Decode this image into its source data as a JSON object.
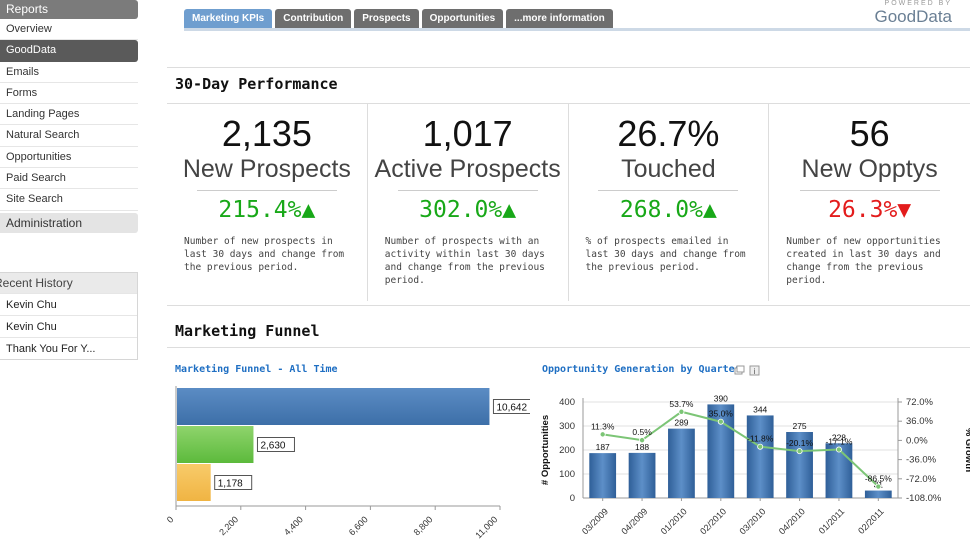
{
  "sidebar": {
    "header": "Reports",
    "items": [
      {
        "label": "Overview"
      },
      {
        "label": "GoodData"
      },
      {
        "label": "Emails"
      },
      {
        "label": "Forms"
      },
      {
        "label": "Landing Pages"
      },
      {
        "label": "Natural Search"
      },
      {
        "label": "Opportunities"
      },
      {
        "label": "Paid Search"
      },
      {
        "label": "Site Search"
      }
    ],
    "admin": "Administration",
    "recent": {
      "header": "Recent History",
      "items": [
        {
          "label": "Kevin Chu"
        },
        {
          "label": "Kevin Chu"
        },
        {
          "label": "Thank You For Y..."
        }
      ]
    }
  },
  "tabs": [
    {
      "label": "Marketing KPIs"
    },
    {
      "label": "Contribution"
    },
    {
      "label": "Prospects"
    },
    {
      "label": "Opportunities"
    },
    {
      "label": "...more information"
    }
  ],
  "logo": {
    "powered": "POWERED BY",
    "brand": "GoodData"
  },
  "performance": {
    "title": "30-Day Performance",
    "kpis": [
      {
        "value": "2,135",
        "label": "New Prospects",
        "change": "215.4%▲",
        "direction": "up",
        "desc": "Number of new prospects in last 30 days and change from the previous period."
      },
      {
        "value": "1,017",
        "label": "Active Prospects",
        "change": "302.0%▲",
        "direction": "up",
        "desc": "Number of prospects with an activity within last 30 days and change from the previous period."
      },
      {
        "value": "26.7%",
        "label": "Touched",
        "change": "268.0%▲",
        "direction": "up",
        "desc": "% of prospects emailed in last 30 days and change from the previous period."
      },
      {
        "value": "56",
        "label": "New Opptys",
        "change": "26.3%▼",
        "direction": "down",
        "desc": "Number of new opportunities created in last 30 days and change from the previous period."
      }
    ]
  },
  "funnel": {
    "title": "Marketing Funnel"
  },
  "colors": {
    "accent": "#1f6fc3",
    "up": "#18a818",
    "down": "#e31c1c",
    "bar_blue": "#3d6fa8",
    "bar_green": "#5cba3c",
    "bar_orange": "#f0b443",
    "line_green": "#7cc576"
  },
  "chart_data": [
    {
      "type": "bar",
      "orientation": "horizontal",
      "title": "Marketing Funnel - All Time",
      "values": [
        10642,
        2630,
        1178
      ],
      "value_labels": [
        "10,642",
        "2,630",
        "1,178"
      ],
      "xlim": [
        0,
        11000
      ],
      "xticks": [
        "0",
        "2,200",
        "4,400",
        "6,600",
        "8,800",
        "11,000"
      ],
      "xtick_values": [
        0,
        2200,
        4400,
        6600,
        8800,
        11000
      ]
    },
    {
      "type": "bar",
      "title": "Opportunity Generation by Quarter",
      "categories": [
        "Q3/2009",
        "Q4/2009",
        "Q1/2010",
        "Q2/2010",
        "Q3/2010",
        "Q4/2010",
        "Q1/2011",
        "Q2/2011"
      ],
      "category_labels": [
        "03/2009",
        "04/2009",
        "01/2010",
        "02/2010",
        "03/2010",
        "04/2010",
        "01/2011",
        "02/2011"
      ],
      "values": [
        187,
        188,
        289,
        390,
        344,
        275,
        228,
        31
      ],
      "value_labels": [
        "187",
        "188",
        "289",
        "390",
        "344",
        "275",
        "228",
        "31"
      ],
      "ylabel": "# Opportunities",
      "ylim": [
        0,
        400
      ],
      "yticks": [
        "0",
        "100",
        "200",
        "300",
        "400"
      ],
      "ytick_values": [
        0,
        100,
        200,
        300,
        400
      ],
      "growth_series": {
        "name": "% Growth",
        "values": [
          11.3,
          0.5,
          53.7,
          35.0,
          -11.8,
          -20.1,
          -17.1,
          -86.5
        ],
        "labels": [
          "11.3%",
          "0.5%",
          "53.7%",
          "35.0%",
          "-11.8%",
          "-20.1%",
          "-17.1%",
          "-86.5%"
        ],
        "ylabel": "% Growth",
        "ylim": [
          -108,
          72
        ],
        "yticks": [
          "72.0%",
          "36.0%",
          "0.0%",
          "-36.0%",
          "-72.0%",
          "-108.0%"
        ],
        "ytick_values": [
          72,
          36,
          0,
          -36,
          -72,
          -108
        ]
      }
    }
  ]
}
